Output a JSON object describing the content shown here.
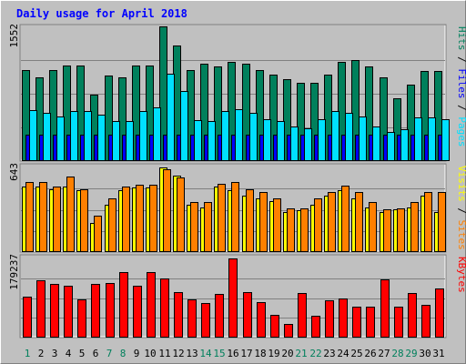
{
  "title": "Daily usage for April 2018",
  "colors": {
    "title": "#0000ff",
    "hits": "#00805c",
    "files": "#0000ff",
    "pages": "#00e0ff",
    "visits": "#ffff00",
    "sites": "#ff8000",
    "kbytes": "#ff0000",
    "weekend_day": "#00805c",
    "weekday": "#000000",
    "bg": "#c0c0c0"
  },
  "chart_data": {
    "type": "bar",
    "categories": [
      "1",
      "2",
      "3",
      "4",
      "5",
      "6",
      "7",
      "8",
      "9",
      "10",
      "11",
      "12",
      "13",
      "14",
      "15",
      "16",
      "17",
      "18",
      "19",
      "20",
      "21",
      "22",
      "23",
      "24",
      "25",
      "26",
      "27",
      "28",
      "29",
      "30",
      "31"
    ],
    "weekend_days": [
      1,
      7,
      8,
      14,
      15,
      21,
      22,
      28,
      29
    ],
    "panels": [
      {
        "id": "hits-files-pages",
        "ymax": 1552,
        "ymax_label": "1552",
        "legend": [
          "Pages",
          "Files",
          "Hits"
        ],
        "series": [
          {
            "name": "Hits",
            "values": [
              1049,
              961,
              1049,
              1103,
              1103,
              767,
              985,
              961,
              1103,
              1103,
              1552,
              1335,
              1049,
              1125,
              1095,
              1140,
              1125,
              1049,
              994,
              946,
              903,
              903,
              994,
              1140,
              1160,
              1095,
              961,
              722,
              883,
              1033,
              1033
            ]
          },
          {
            "name": "Files",
            "values": [
              300,
              300,
              300,
              300,
              300,
              300,
              300,
              300,
              300,
              300,
              300,
              300,
              300,
              300,
              300,
              300,
              300,
              300,
              300,
              300,
              300,
              300,
              300,
              300,
              300,
              300,
              300,
              300,
              300,
              300,
              300
            ]
          },
          {
            "name": "Pages",
            "values": [
              592,
              556,
              512,
              575,
              575,
              540,
              459,
              459,
              575,
              622,
              1003,
              811,
              474,
              459,
              575,
              601,
              556,
              487,
              459,
              395,
              377,
              487,
              575,
              556,
              512,
              395,
              337,
              367,
              503,
              503,
              487
            ]
          }
        ]
      },
      {
        "id": "visits-sites",
        "ymax": 643,
        "ymax_label": "643",
        "legend": [
          "Sites",
          "Visits"
        ],
        "series": [
          {
            "name": "Visits",
            "values": [
              501,
              501,
              480,
              501,
              467,
              223,
              361,
              467,
              488,
              488,
              643,
              583,
              358,
              338,
              501,
              467,
              428,
              405,
              386,
              304,
              316,
              361,
              428,
              467,
              405,
              338,
              304,
              323,
              338,
              428,
              304
            ]
          },
          {
            "name": "Sites",
            "values": [
              532,
              532,
              500,
              575,
              476,
              277,
              405,
              500,
              511,
              511,
              630,
              567,
              383,
              383,
              520,
              532,
              476,
              458,
              405,
              330,
              330,
              405,
              455,
              504,
              458,
              383,
              323,
              334,
              383,
              458,
              455
            ]
          }
        ]
      },
      {
        "id": "kbytes",
        "ymax": 179237,
        "ymax_label": "179237",
        "legend": [
          "KBytes"
        ],
        "series": [
          {
            "name": "KBytes",
            "values": [
              91683,
              129190,
              121856,
              116640,
              87240,
              121856,
              123936,
              148416,
              116640,
              148416,
              134930,
              103650,
              85930,
              77560,
              98290,
              179237,
              103650,
              80630,
              51840,
              30900,
              100360,
              49650,
              83630,
              89030,
              69360,
              69360,
              132820,
              69360,
              100360,
              74770,
              110280
            ]
          }
        ]
      }
    ]
  }
}
